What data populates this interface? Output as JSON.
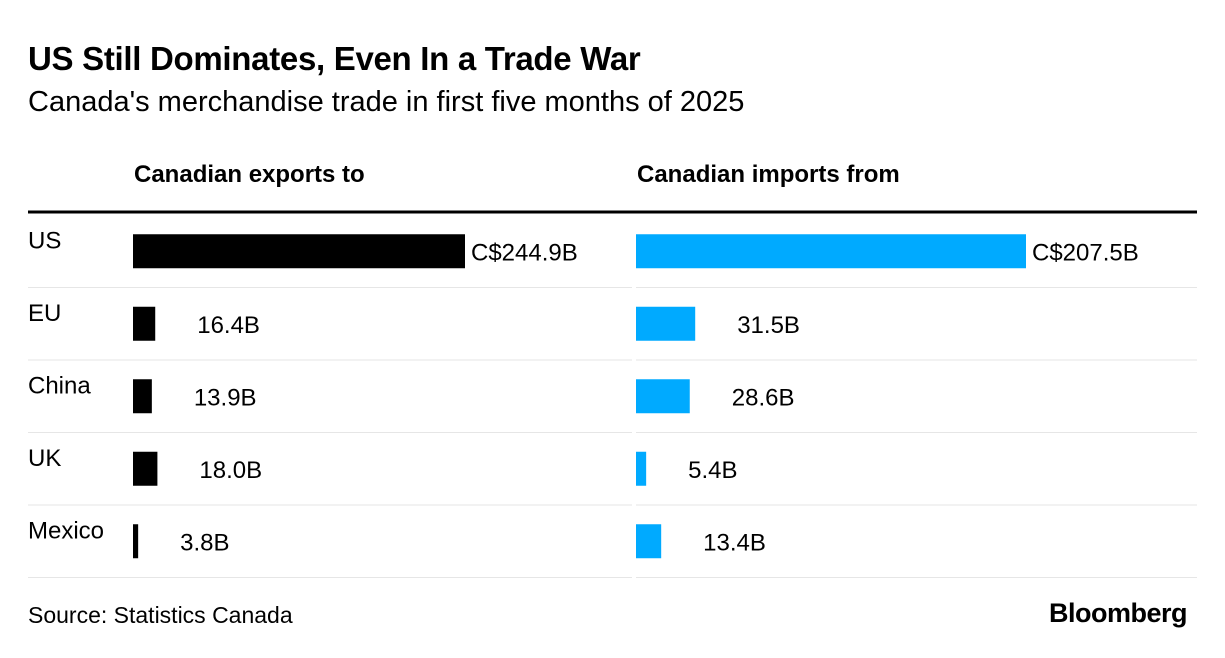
{
  "title": "US Still Dominates, Even In a Trade War",
  "subtitle": "Canada's merchandise trade in first five months of 2025",
  "source": "Source: Statistics Canada",
  "brand": "Bloomberg",
  "colors": {
    "exports": "#000000",
    "imports": "#00aaff",
    "divider": "#e6e6e6"
  },
  "chart_data": {
    "type": "bar",
    "orientation": "horizontal",
    "units": "C$ billions",
    "categories": [
      "US",
      "EU",
      "China",
      "UK",
      "Mexico"
    ],
    "series": [
      {
        "name": "Canadian exports to",
        "values": [
          244.9,
          16.4,
          13.9,
          18.0,
          3.8
        ],
        "labels": [
          "C$244.9B",
          "16.4B",
          "13.9B",
          "18.0B",
          "3.8B"
        ]
      },
      {
        "name": "Canadian imports from",
        "values": [
          207.5,
          31.5,
          28.6,
          5.4,
          13.4
        ],
        "labels": [
          "C$207.5B",
          "31.5B",
          "28.6B",
          "5.4B",
          "13.4B"
        ]
      }
    ],
    "grid": false,
    "legend": "column headers"
  }
}
